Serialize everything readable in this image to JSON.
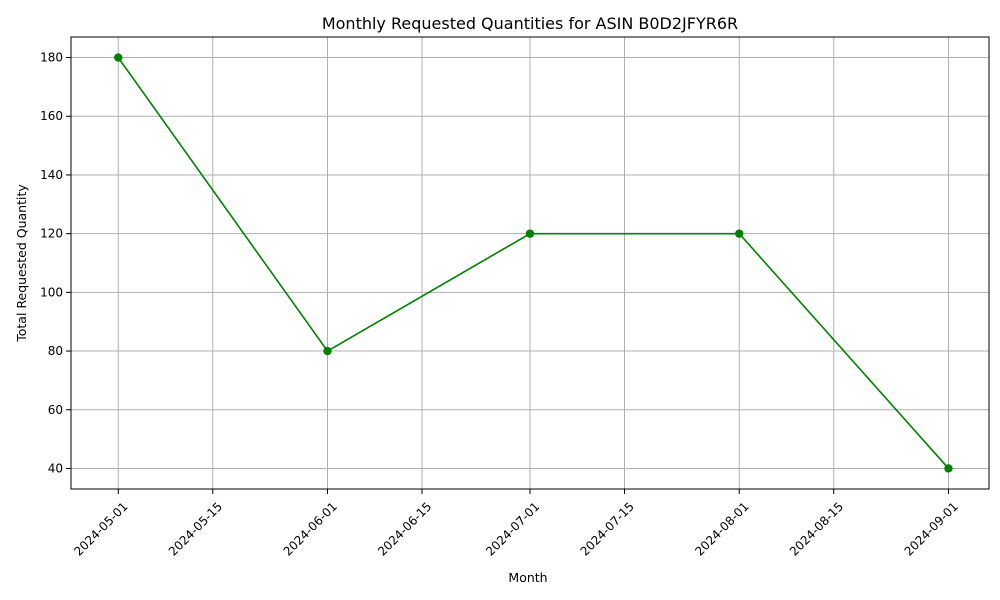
{
  "chart_data": {
    "type": "line",
    "title": "Monthly Requested Quantities for ASIN B0D2JFYR6R",
    "xlabel": "Month",
    "ylabel": "Total Requested Quantity",
    "x_ticks": [
      "2024-05-01",
      "2024-05-15",
      "2024-06-01",
      "2024-06-15",
      "2024-07-01",
      "2024-07-15",
      "2024-08-01",
      "2024-08-15",
      "2024-09-01"
    ],
    "y_ticks": [
      40,
      60,
      80,
      100,
      120,
      140,
      160,
      180
    ],
    "xlim": [
      "2024-04-24",
      "2024-09-07"
    ],
    "ylim": [
      33,
      187
    ],
    "grid": true,
    "series": [
      {
        "color": "#008000",
        "marker": "circle",
        "points": [
          {
            "x": "2024-05-01",
            "y": 180
          },
          {
            "x": "2024-06-01",
            "y": 80
          },
          {
            "x": "2024-07-01",
            "y": 120
          },
          {
            "x": "2024-08-01",
            "y": 120
          },
          {
            "x": "2024-09-01",
            "y": 40
          }
        ]
      }
    ]
  }
}
